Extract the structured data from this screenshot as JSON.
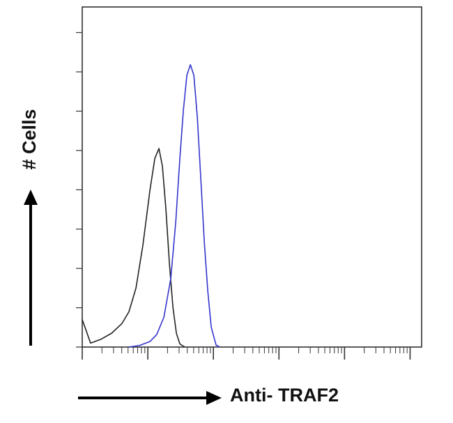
{
  "chart_data": {
    "type": "line",
    "x_label": "Anti- TRAF2",
    "y_label": "# Cells",
    "xscale": "log",
    "xlim": [
      1,
      150000
    ],
    "ylim": [
      0,
      8.65
    ],
    "xticks": [
      1,
      2,
      3,
      4,
      5,
      6,
      7,
      8,
      9,
      10,
      20,
      30,
      40,
      50,
      60,
      70,
      80,
      90,
      100,
      200,
      300,
      400,
      500,
      600,
      700,
      800,
      900,
      1000,
      2000,
      3000,
      4000,
      5000,
      6000,
      7000,
      8000,
      9000,
      10000,
      20000,
      30000,
      40000,
      50000,
      60000,
      70000,
      80000,
      90000,
      100000
    ],
    "yticks": [
      0,
      1,
      2,
      3,
      4,
      5,
      6,
      7,
      8
    ],
    "series": [
      {
        "color": "#222222",
        "x": [
          1,
          1.34,
          1.94,
          2.8,
          4.04,
          5.16,
          6.6,
          8.43,
          10.8,
          12.8,
          14.8,
          16.7,
          18.9,
          21.4,
          24.2,
          27.3,
          30.8,
          36.6
        ],
        "values": [
          0.7,
          0.1,
          0.2,
          0.35,
          0.6,
          0.9,
          1.5,
          2.6,
          4.0,
          4.8,
          5.05,
          4.6,
          3.5,
          2.1,
          1.0,
          0.35,
          0.08,
          0
        ]
      },
      {
        "color": "#3333cc",
        "x": [
          5.16,
          7.45,
          10.8,
          13.7,
          17.6,
          22.4,
          26.7,
          30.8,
          34.9,
          39.4,
          44.6,
          50.4,
          56.9,
          64.4,
          72.8,
          82.2,
          92.9,
          110,
          125
        ],
        "values": [
          0,
          0.04,
          0.14,
          0.32,
          0.76,
          1.74,
          3.19,
          4.79,
          6.03,
          6.91,
          7.18,
          6.91,
          5.85,
          4.26,
          2.66,
          1.42,
          0.5,
          0.05,
          0
        ]
      }
    ]
  }
}
